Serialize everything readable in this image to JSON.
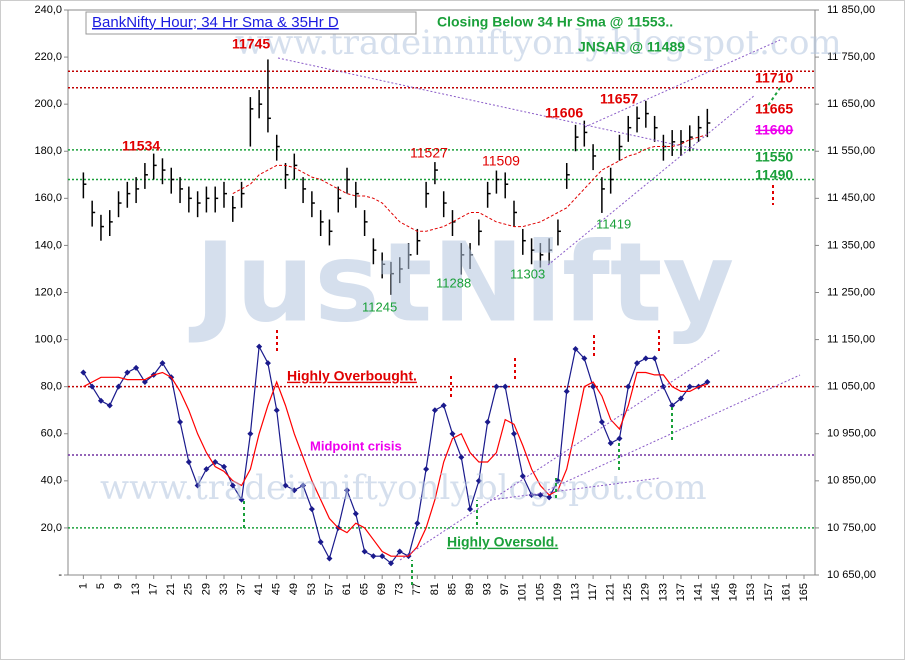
{
  "chart_data": {
    "type": "combo",
    "title": "BankNifty Hour; 34 Hr Sma & 35Hr D",
    "annotations": [
      "11745",
      "11534",
      "11527",
      "11509",
      "11606",
      "11657",
      "11710",
      "11665",
      "11600",
      "11550",
      "11490",
      "11245",
      "11288",
      "11303",
      "11419",
      "Closing Below 34 Hr Sma @ 11553..",
      "JNSAR @ 11489",
      "Highly Overbought.",
      "Midpoint crisis",
      "Highly Oversold.",
      "JustNifty",
      "www.tradeinniftyonly.blogspot.com"
    ],
    "x": [
      1,
      3,
      5,
      7,
      9,
      11,
      13,
      15,
      17,
      19,
      21,
      23,
      25,
      27,
      29,
      31,
      33,
      35,
      37,
      39,
      41,
      43,
      45,
      47,
      49,
      51,
      53,
      55,
      57,
      59,
      61,
      63,
      65,
      67,
      69,
      71,
      73,
      75,
      77,
      79,
      81,
      83,
      85,
      87,
      89,
      91,
      93,
      95,
      97,
      99,
      101,
      103,
      105,
      107,
      109,
      111,
      113,
      115,
      117,
      119,
      121,
      123,
      125,
      127,
      129,
      131,
      133,
      135,
      137,
      139,
      141,
      143
    ],
    "xlim": [
      -2.5,
      167.5
    ],
    "xticks": [
      1,
      5,
      9,
      13,
      17,
      21,
      25,
      29,
      33,
      37,
      41,
      45,
      49,
      53,
      57,
      61,
      65,
      69,
      73,
      77,
      81,
      85,
      89,
      93,
      97,
      101,
      105,
      109,
      113,
      117,
      121,
      125,
      129,
      133,
      137,
      141,
      145,
      149,
      153,
      157,
      161,
      165
    ],
    "ylim": [
      0,
      240
    ],
    "yticks": [
      {
        "value": 0,
        "label": "-"
      },
      {
        "value": 20,
        "label": "20,0"
      },
      {
        "value": 40,
        "label": "40,0"
      },
      {
        "value": 60,
        "label": "60,0"
      },
      {
        "value": 80,
        "label": "80,0"
      },
      {
        "value": 100,
        "label": "100,0"
      },
      {
        "value": 120,
        "label": "120,0"
      },
      {
        "value": 140,
        "label": "140,0"
      },
      {
        "value": 160,
        "label": "160,0"
      },
      {
        "value": 180,
        "label": "180,0"
      },
      {
        "value": 200,
        "label": "200,0"
      },
      {
        "value": 220,
        "label": "220,0"
      },
      {
        "value": 240,
        "label": "240,0"
      }
    ],
    "y2lim": [
      10650,
      11850
    ],
    "y2ticks": [
      {
        "value": 10650,
        "label": "10 650,00"
      },
      {
        "value": 10750,
        "label": "10 750,00"
      },
      {
        "value": 10850,
        "label": "10 850,00"
      },
      {
        "value": 10950,
        "label": "10 950,00"
      },
      {
        "value": 11050,
        "label": "11 050,00"
      },
      {
        "value": 11150,
        "label": "11 150,00"
      },
      {
        "value": 11250,
        "label": "11 250,00"
      },
      {
        "value": 11350,
        "label": "11 350,00"
      },
      {
        "value": 11450,
        "label": "11 450,00"
      },
      {
        "value": 11550,
        "label": "11 550,00"
      },
      {
        "value": 11650,
        "label": "11 650,00"
      },
      {
        "value": 11750,
        "label": "11 750,00"
      },
      {
        "value": 11850,
        "label": "11 850,00"
      }
    ],
    "series": [
      {
        "type": "hlc",
        "axis": "y2",
        "color": "#000000",
        "high": [
          11505,
          11445,
          11415,
          11425,
          11465,
          11485,
          11495,
          11525,
          11545,
          11535,
          11515,
          11495,
          11475,
          11465,
          11475,
          11475,
          11485,
          11455,
          11485,
          11665,
          11680,
          11745,
          11585,
          11525,
          11545,
          11495,
          11465,
          11425,
          11405,
          11475,
          11515,
          11485,
          11425,
          11365,
          11335,
          11315,
          11325,
          11355,
          11385,
          11485,
          11527,
          11465,
          11425,
          11355,
          11355,
          11405,
          11485,
          11509,
          11505,
          11445,
          11385,
          11365,
          11355,
          11365,
          11405,
          11525,
          11606,
          11615,
          11565,
          11495,
          11515,
          11585,
          11625,
          11645,
          11657,
          11625,
          11585,
          11595,
          11595,
          11605,
          11625,
          11640
        ],
        "low": [
          11450,
          11390,
          11360,
          11370,
          11410,
          11430,
          11440,
          11470,
          11490,
          11480,
          11460,
          11440,
          11420,
          11410,
          11420,
          11420,
          11430,
          11400,
          11430,
          11560,
          11620,
          11590,
          11530,
          11470,
          11490,
          11440,
          11410,
          11370,
          11350,
          11420,
          11460,
          11430,
          11370,
          11310,
          11280,
          11245,
          11270,
          11300,
          11330,
          11430,
          11480,
          11410,
          11370,
          11288,
          11300,
          11350,
          11430,
          11460,
          11450,
          11390,
          11330,
          11310,
          11303,
          11310,
          11350,
          11470,
          11550,
          11560,
          11510,
          11419,
          11460,
          11530,
          11570,
          11590,
          11600,
          11570,
          11530,
          11540,
          11540,
          11550,
          11570,
          11580
        ],
        "close": [
          11480,
          11420,
          11390,
          11400,
          11440,
          11460,
          11470,
          11500,
          11520,
          11510,
          11490,
          11470,
          11450,
          11440,
          11450,
          11450,
          11460,
          11430,
          11460,
          11640,
          11650,
          11620,
          11560,
          11500,
          11520,
          11470,
          11440,
          11400,
          11380,
          11450,
          11490,
          11460,
          11400,
          11340,
          11310,
          11290,
          11300,
          11330,
          11360,
          11460,
          11510,
          11440,
          11400,
          11330,
          11330,
          11380,
          11460,
          11490,
          11480,
          11420,
          11360,
          11340,
          11330,
          11340,
          11380,
          11500,
          11580,
          11590,
          11540,
          11470,
          11490,
          11560,
          11600,
          11620,
          11630,
          11600,
          11560,
          11570,
          11570,
          11580,
          11600,
          11610
        ]
      },
      {
        "type": "line",
        "axis": "y2",
        "color": "#e00000",
        "dashed": true,
        "markers": false,
        "values": [
          null,
          null,
          null,
          null,
          null,
          null,
          null,
          null,
          null,
          null,
          null,
          null,
          null,
          null,
          null,
          null,
          null,
          11460,
          11470,
          11480,
          11500,
          11510,
          11520,
          11520,
          11515,
          11505,
          11495,
          11490,
          11480,
          11470,
          11460,
          11455,
          11455,
          11450,
          11440,
          11420,
          11400,
          11390,
          11380,
          11380,
          11385,
          11390,
          11400,
          11410,
          11420,
          11420,
          11410,
          11400,
          11395,
          11390,
          11390,
          11395,
          11400,
          11410,
          11420,
          11430,
          11450,
          11470,
          11490,
          11510,
          11520,
          11530,
          11540,
          11545,
          11555,
          11560,
          11560,
          11560,
          11565,
          11575,
          11580,
          11585
        ]
      },
      {
        "type": "line",
        "axis": "y",
        "color": "#1a1a8c",
        "dashed": false,
        "markers": true,
        "values": [
          86,
          80,
          74,
          72,
          80,
          86,
          88,
          82,
          85,
          90,
          84,
          65,
          48,
          38,
          45,
          48,
          46,
          38,
          32,
          60,
          97,
          90,
          70,
          38,
          36,
          38,
          28,
          14,
          7,
          20,
          36,
          26,
          10,
          8,
          8,
          5,
          10,
          8,
          22,
          45,
          70,
          72,
          60,
          50,
          28,
          40,
          65,
          80,
          80,
          60,
          42,
          34,
          34,
          33,
          40,
          78,
          96,
          92,
          80,
          65,
          56,
          58,
          80,
          90,
          92,
          92,
          80,
          72,
          75,
          80,
          80,
          82
        ]
      },
      {
        "type": "line",
        "axis": "y",
        "color": "#ff0000",
        "dashed": false,
        "markers": false,
        "values": [
          80,
          82,
          84,
          84,
          84,
          83,
          83,
          83,
          85,
          86,
          84,
          78,
          70,
          60,
          52,
          46,
          44,
          40,
          38,
          45,
          60,
          72,
          82,
          72,
          60,
          50,
          40,
          32,
          24,
          20,
          18,
          22,
          20,
          15,
          10,
          8,
          8,
          8,
          12,
          20,
          32,
          48,
          58,
          60,
          52,
          48,
          48,
          52,
          66,
          64,
          55,
          45,
          38,
          34,
          36,
          45,
          62,
          80,
          82,
          76,
          66,
          62,
          72,
          86,
          86,
          85,
          85,
          80,
          78,
          78,
          80,
          81
        ]
      }
    ],
    "hlines": [
      {
        "value": 11720,
        "axis": "y2",
        "color": "#c00000"
      },
      {
        "value": 11685,
        "axis": "y2",
        "color": "#c00000"
      },
      {
        "value": 11553,
        "axis": "y2",
        "color": "#1aa03a"
      },
      {
        "value": 11490,
        "axis": "y2",
        "color": "#1aa03a"
      },
      {
        "value": 80,
        "axis": "y",
        "color": "#c00000"
      },
      {
        "value": 51,
        "axis": "y",
        "color": "#7030a0"
      },
      {
        "value": 20,
        "axis": "y",
        "color": "#1aa03a"
      }
    ]
  }
}
